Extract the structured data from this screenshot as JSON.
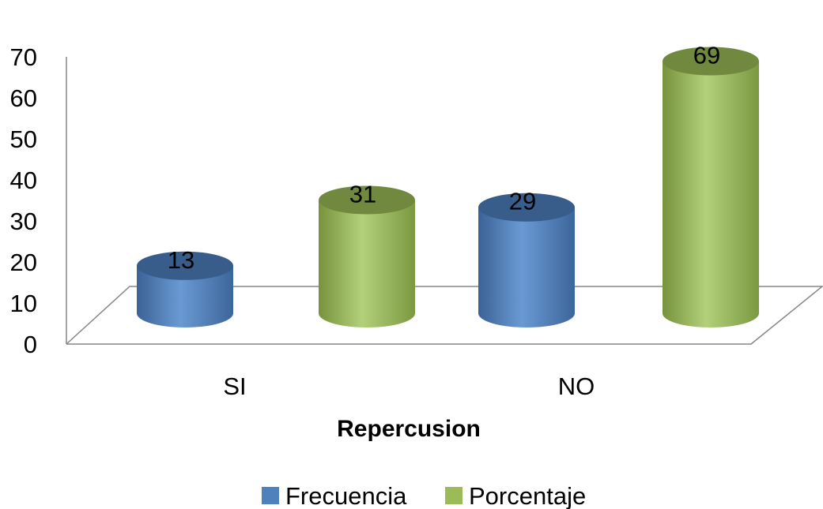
{
  "chart_data": {
    "type": "bar",
    "title": "",
    "xlabel": "Repercusion",
    "ylabel": "",
    "ylim": [
      0,
      70
    ],
    "y_ticks": [
      0,
      10,
      20,
      30,
      40,
      50,
      60,
      70
    ],
    "categories": [
      "SI",
      "NO"
    ],
    "series": [
      {
        "name": "Frecuencia",
        "values": [
          13,
          29
        ],
        "color": "#4f81bd"
      },
      {
        "name": "Porcentaje",
        "values": [
          31,
          69
        ],
        "color": "#9bbb59"
      }
    ],
    "legend_position": "bottom",
    "style": "3d-cylinder",
    "grid": false
  }
}
